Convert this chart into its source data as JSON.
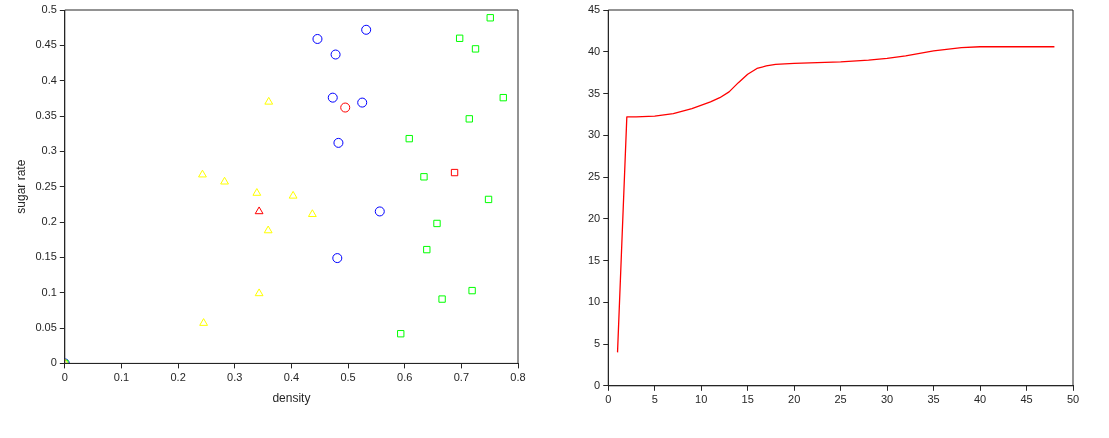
{
  "chart_data": [
    {
      "type": "scatter",
      "xlabel": "density",
      "ylabel": "sugar rate",
      "xlim": [
        0,
        0.8
      ],
      "ylim": [
        0,
        0.5
      ],
      "xticks": [
        0,
        0.1,
        0.2,
        0.3,
        0.4,
        0.5,
        0.6,
        0.7,
        0.8
      ],
      "yticks": [
        0,
        0.05,
        0.1,
        0.15,
        0.2,
        0.25,
        0.3,
        0.35,
        0.4,
        0.45,
        0.5
      ],
      "grid": false,
      "legend": false,
      "series": [
        {
          "color": "#ffff00",
          "marker": "triangle",
          "x": [
            0,
            0.243,
            0.282,
            0.339,
            0.36,
            0.403,
            0.437,
            0.359,
            0.343,
            0.245
          ],
          "values": [
            0,
            0.267,
            0.257,
            0.241,
            0.37,
            0.237,
            0.211,
            0.188,
            0.099,
            0.057
          ]
        },
        {
          "color": "#00ff00",
          "marker": "square",
          "x": [
            0,
            0.697,
            0.751,
            0.725,
            0.774,
            0.714,
            0.608,
            0.634,
            0.748,
            0.657,
            0.639,
            0.719,
            0.666,
            0.593
          ],
          "values": [
            0,
            0.46,
            0.489,
            0.445,
            0.376,
            0.346,
            0.318,
            0.264,
            0.232,
            0.198,
            0.161,
            0.103,
            0.091,
            0.042
          ]
        },
        {
          "color": "#0000ff",
          "marker": "circle",
          "x": [
            0,
            0.446,
            0.532,
            0.478,
            0.473,
            0.525,
            0.483,
            0.556,
            0.481
          ],
          "values": [
            0,
            0.459,
            0.472,
            0.437,
            0.376,
            0.369,
            0.312,
            0.215,
            0.149
          ]
        },
        {
          "color": "#ff0000",
          "marker": "triangle",
          "x": [
            0.343
          ],
          "values": [
            0.215
          ]
        },
        {
          "color": "#ff0000",
          "marker": "circle",
          "x": [
            0.495
          ],
          "values": [
            0.362
          ]
        },
        {
          "color": "#ff0000",
          "marker": "square",
          "x": [
            0.688
          ],
          "values": [
            0.27
          ]
        }
      ]
    },
    {
      "type": "line",
      "xlim": [
        0,
        50
      ],
      "ylim": [
        0,
        45
      ],
      "xticks": [
        0,
        5,
        10,
        15,
        20,
        25,
        30,
        35,
        40,
        45,
        50
      ],
      "yticks": [
        0,
        5,
        10,
        15,
        20,
        25,
        30,
        35,
        40,
        45
      ],
      "grid": false,
      "legend": false,
      "marker": "none",
      "series": [
        {
          "color": "#ff0000",
          "x": [
            1,
            2,
            3,
            5,
            7,
            9,
            11,
            12,
            13,
            14,
            15,
            16,
            17,
            18,
            20,
            25,
            28,
            30,
            32,
            35,
            38,
            40,
            45,
            48
          ],
          "values": [
            4,
            32.2,
            32.2,
            32.3,
            32.6,
            33.2,
            34,
            34.5,
            35.2,
            36.3,
            37.3,
            38,
            38.3,
            38.5,
            38.6,
            38.8,
            39,
            39.2,
            39.5,
            40.1,
            40.5,
            40.6,
            40.6,
            40.6
          ]
        }
      ]
    }
  ]
}
